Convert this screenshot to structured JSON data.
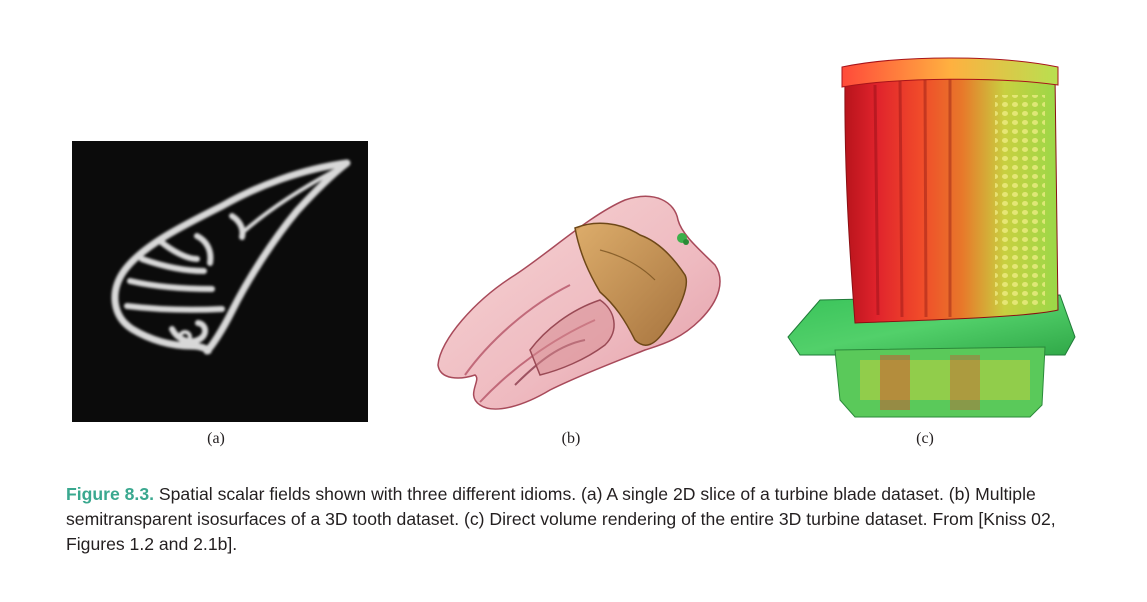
{
  "figure": {
    "panels": [
      {
        "label": "(a)",
        "content": "2D slice of turbine blade"
      },
      {
        "label": "(b)",
        "content": "semitransparent tooth isosurfaces"
      },
      {
        "label": "(c)",
        "content": "volume-rendered turbine"
      }
    ],
    "caption": {
      "figure_number": "Figure 8.3.",
      "text": " Spatial scalar fields shown with three different idioms. (a) A single 2D slice of a turbine blade dataset. (b) Multiple semitransparent isosurfaces of a 3D tooth dataset. (c) Direct volume rendering of the entire 3D turbine dataset. From [Kniss 02, Figures 1.2 and 2.1b]."
    }
  },
  "colors": {
    "caption_accent": "#3aa88f",
    "slice_background": "#0b0b0b",
    "tooth_pink": "#e8a0a8",
    "tooth_gold": "#c08a3a",
    "turbine_red": "#d8202a",
    "turbine_green": "#3cc850"
  }
}
